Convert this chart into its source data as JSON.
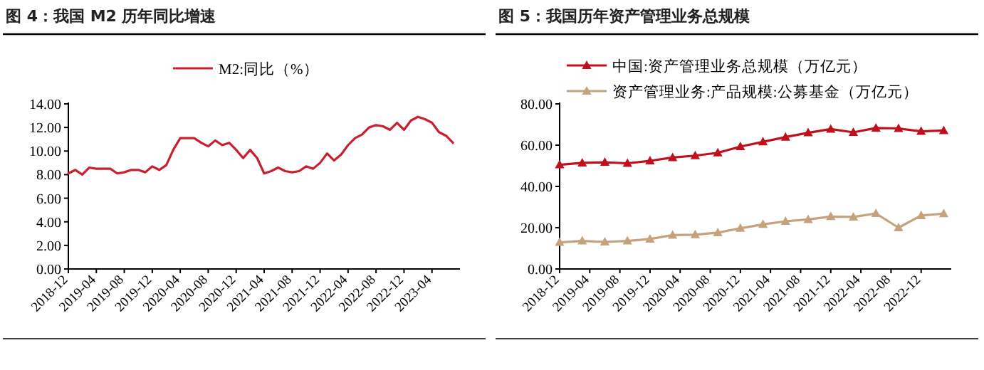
{
  "chart_data": [
    {
      "type": "line",
      "title": "图 4：我国 M2 历年同比增速",
      "x": [
        "2018-12",
        "2019-01",
        "2019-02",
        "2019-03",
        "2019-04",
        "2019-05",
        "2019-06",
        "2019-07",
        "2019-08",
        "2019-09",
        "2019-10",
        "2019-11",
        "2019-12",
        "2020-01",
        "2020-02",
        "2020-03",
        "2020-04",
        "2020-05",
        "2020-06",
        "2020-07",
        "2020-08",
        "2020-09",
        "2020-10",
        "2020-11",
        "2020-12",
        "2021-01",
        "2021-02",
        "2021-03",
        "2021-04",
        "2021-05",
        "2021-06",
        "2021-07",
        "2021-08",
        "2021-09",
        "2021-10",
        "2021-11",
        "2021-12",
        "2022-01",
        "2022-02",
        "2022-03",
        "2022-04",
        "2022-05",
        "2022-06",
        "2022-07",
        "2022-08",
        "2022-09",
        "2022-10",
        "2022-11",
        "2022-12",
        "2023-01",
        "2023-02",
        "2023-03",
        "2023-04",
        "2023-05",
        "2023-06",
        "2023-07"
      ],
      "series": [
        {
          "name": "M2:同比（%）",
          "color": "#c8202e",
          "values": [
            8.1,
            8.4,
            8.0,
            8.6,
            8.5,
            8.5,
            8.5,
            8.1,
            8.2,
            8.4,
            8.4,
            8.2,
            8.7,
            8.4,
            8.8,
            10.1,
            11.1,
            11.1,
            11.1,
            10.7,
            10.4,
            10.9,
            10.5,
            10.7,
            10.1,
            9.4,
            10.1,
            9.4,
            8.1,
            8.3,
            8.6,
            8.3,
            8.2,
            8.3,
            8.7,
            8.5,
            9.0,
            9.8,
            9.2,
            9.7,
            10.5,
            11.1,
            11.4,
            12.0,
            12.2,
            12.1,
            11.8,
            12.4,
            11.8,
            12.6,
            12.9,
            12.7,
            12.4,
            11.6,
            11.3,
            10.7
          ]
        }
      ],
      "xlim": [
        "2018-12",
        "2023-08"
      ],
      "xticks": [
        "2018-12",
        "2019-04",
        "2019-08",
        "2019-12",
        "2020-04",
        "2020-08",
        "2020-12",
        "2021-04",
        "2021-08",
        "2021-12",
        "2022-04",
        "2022-08",
        "2022-12",
        "2023-04"
      ],
      "ylim": [
        0,
        14
      ],
      "yticks": [
        {
          "value": 0,
          "label": "0.00"
        },
        {
          "value": 2,
          "label": "2.00"
        },
        {
          "value": 4,
          "label": "4.00"
        },
        {
          "value": 6,
          "label": "6.00"
        },
        {
          "value": 8,
          "label": "8.00"
        },
        {
          "value": 10,
          "label": "10.00"
        },
        {
          "value": 12,
          "label": "12.00"
        },
        {
          "value": 14,
          "label": "14.00"
        }
      ],
      "legend": "top"
    },
    {
      "type": "line",
      "title": "图 5：我国历年资产管理业务总规模",
      "marker": "triangle",
      "x": [
        "2018-12",
        "2019-03",
        "2019-06",
        "2019-09",
        "2019-12",
        "2020-03",
        "2020-06",
        "2020-09",
        "2020-12",
        "2021-03",
        "2021-06",
        "2021-09",
        "2021-12",
        "2022-03",
        "2022-06",
        "2022-09",
        "2022-12",
        "2023-03"
      ],
      "series": [
        {
          "name": "中国:资产管理业务总规模（万亿元）",
          "color": "#c0101e",
          "values": [
            50.5,
            51.4,
            51.7,
            51.2,
            52.4,
            54.0,
            54.9,
            56.3,
            59.3,
            61.6,
            63.9,
            66.0,
            67.8,
            66.2,
            68.3,
            68.1,
            66.7,
            67.1
          ]
        },
        {
          "name": "资产管理业务:产品规模:公募基金（万亿元）",
          "color": "#c4a27e",
          "values": [
            12.9,
            13.6,
            13.1,
            13.6,
            14.5,
            16.4,
            16.6,
            17.6,
            19.7,
            21.6,
            23.1,
            24.0,
            25.4,
            25.2,
            26.9,
            20.0,
            25.9,
            26.8
          ]
        }
      ],
      "xlim": [
        "2018-12",
        "2023-04"
      ],
      "xticks": [
        "2018-12",
        "2019-04",
        "2019-08",
        "2019-12",
        "2020-04",
        "2020-08",
        "2020-12",
        "2021-04",
        "2021-08",
        "2021-12",
        "2022-04",
        "2022-08",
        "2022-12"
      ],
      "ylim": [
        0,
        80
      ],
      "yticks": [
        {
          "value": 0,
          "label": "0.00"
        },
        {
          "value": 20,
          "label": "20.00"
        },
        {
          "value": 40,
          "label": "40.00"
        },
        {
          "value": 60,
          "label": "60.00"
        },
        {
          "value": 80,
          "label": "80.00"
        }
      ],
      "legend": "top"
    }
  ]
}
